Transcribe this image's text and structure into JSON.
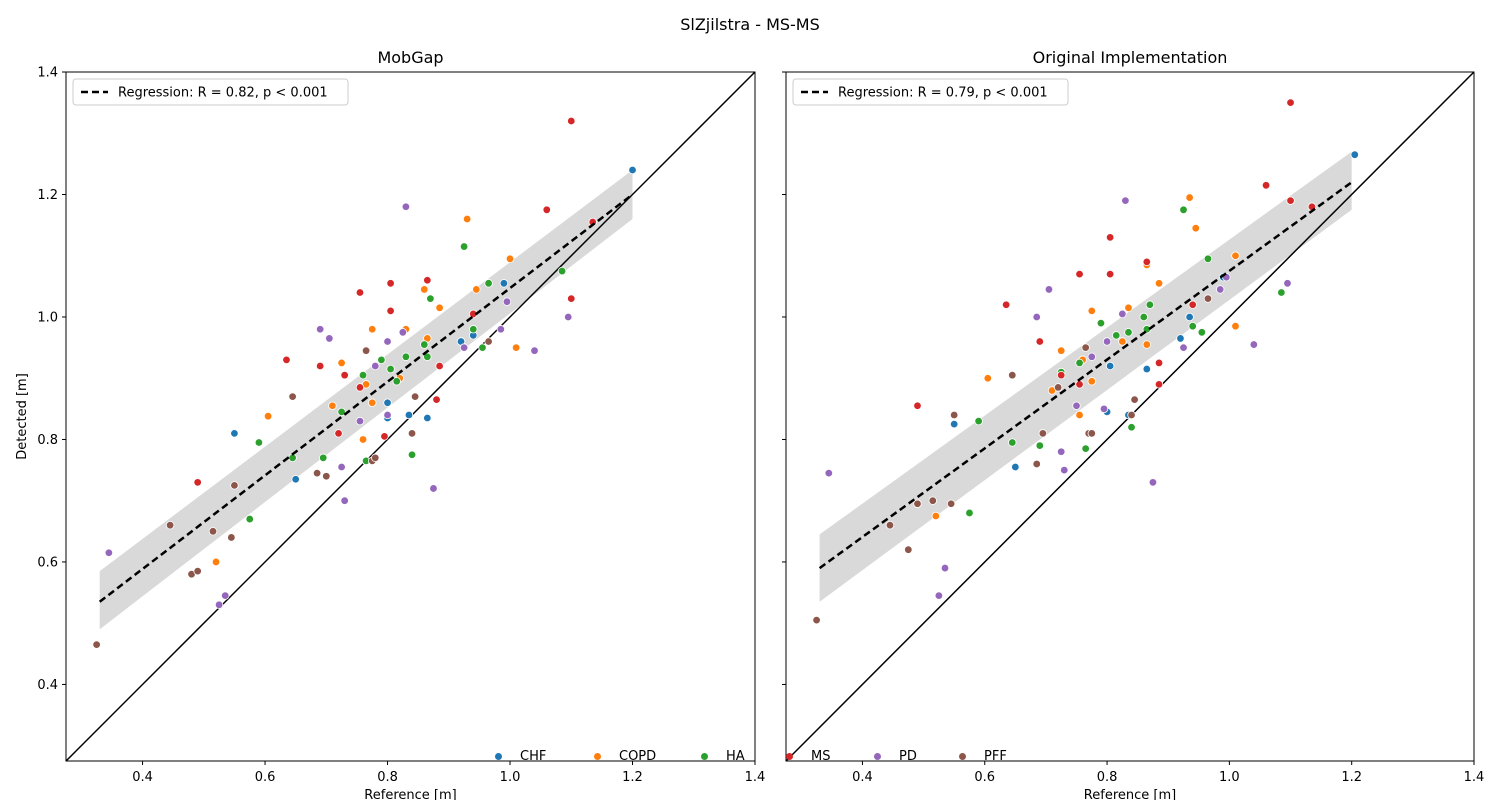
{
  "figure": {
    "suptitle": "SlZjilstra - MS-MS"
  },
  "chart_data": [
    {
      "type": "scatter",
      "title": "MobGap",
      "xlabel": "Reference [m]",
      "ylabel": "Detected [m]",
      "xlim": [
        0.275,
        1.4
      ],
      "ylim": [
        0.275,
        1.4
      ],
      "xticks": [
        "0.4",
        "0.6",
        "0.8",
        "1.0",
        "1.2",
        "1.4"
      ],
      "yticks": [
        "0.4",
        "0.6",
        "0.8",
        "1.0",
        "1.2",
        "1.4"
      ],
      "identity_line": true,
      "regression": {
        "label": "Regression: R = 0.82, p < 0.001",
        "x": [
          0.33,
          1.2
        ],
        "y": [
          0.535,
          1.2
        ],
        "ci_low": [
          0.49,
          1.16
        ],
        "ci_high": [
          0.585,
          1.24
        ]
      },
      "legend_position": "upper-left",
      "series": [
        {
          "name": "CHF",
          "color": "#1f77b4",
          "points": [
            [
              0.55,
              0.81
            ],
            [
              0.65,
              0.735
            ],
            [
              0.8,
              0.835
            ],
            [
              0.8,
              0.86
            ],
            [
              0.835,
              0.84
            ],
            [
              0.865,
              0.835
            ],
            [
              0.92,
              0.96
            ],
            [
              0.94,
              0.97
            ],
            [
              0.99,
              1.055
            ],
            [
              1.2,
              1.24
            ]
          ]
        },
        {
          "name": "COPD",
          "color": "#ff7f0e",
          "points": [
            [
              0.52,
              0.6
            ],
            [
              0.605,
              0.838
            ],
            [
              0.71,
              0.855
            ],
            [
              0.725,
              0.925
            ],
            [
              0.76,
              0.8
            ],
            [
              0.765,
              0.89
            ],
            [
              0.775,
              0.86
            ],
            [
              0.775,
              0.98
            ],
            [
              0.82,
              0.9
            ],
            [
              0.83,
              0.98
            ],
            [
              0.86,
              1.045
            ],
            [
              0.865,
              0.965
            ],
            [
              0.885,
              1.015
            ],
            [
              0.93,
              1.16
            ],
            [
              0.945,
              1.045
            ],
            [
              1.0,
              1.095
            ],
            [
              1.01,
              0.95
            ]
          ]
        },
        {
          "name": "HA",
          "color": "#2ca02c",
          "points": [
            [
              0.575,
              0.67
            ],
            [
              0.59,
              0.795
            ],
            [
              0.645,
              0.77
            ],
            [
              0.695,
              0.77
            ],
            [
              0.725,
              0.845
            ],
            [
              0.76,
              0.905
            ],
            [
              0.765,
              0.765
            ],
            [
              0.79,
              0.93
            ],
            [
              0.805,
              0.915
            ],
            [
              0.815,
              0.895
            ],
            [
              0.83,
              0.935
            ],
            [
              0.84,
              0.775
            ],
            [
              0.86,
              0.955
            ],
            [
              0.865,
              0.935
            ],
            [
              0.87,
              1.03
            ],
            [
              0.925,
              1.115
            ],
            [
              0.94,
              0.98
            ],
            [
              0.955,
              0.95
            ],
            [
              0.965,
              1.055
            ],
            [
              1.085,
              1.075
            ]
          ]
        },
        {
          "name": "MS",
          "color": "#d62728",
          "points": [
            [
              0.49,
              0.73
            ],
            [
              0.635,
              0.93
            ],
            [
              0.69,
              0.92
            ],
            [
              0.72,
              0.81
            ],
            [
              0.73,
              0.905
            ],
            [
              0.755,
              1.04
            ],
            [
              0.755,
              0.885
            ],
            [
              0.795,
              0.805
            ],
            [
              0.805,
              1.01
            ],
            [
              0.805,
              1.055
            ],
            [
              0.865,
              1.06
            ],
            [
              0.88,
              0.865
            ],
            [
              0.885,
              0.92
            ],
            [
              0.94,
              1.005
            ],
            [
              1.06,
              1.175
            ],
            [
              1.1,
              1.03
            ],
            [
              1.1,
              1.32
            ],
            [
              1.135,
              1.155
            ]
          ]
        },
        {
          "name": "PD",
          "color": "#9467bd",
          "points": [
            [
              0.345,
              0.615
            ],
            [
              0.525,
              0.53
            ],
            [
              0.535,
              0.545
            ],
            [
              0.69,
              0.98
            ],
            [
              0.705,
              0.965
            ],
            [
              0.725,
              0.755
            ],
            [
              0.73,
              0.7
            ],
            [
              0.755,
              0.83
            ],
            [
              0.78,
              0.92
            ],
            [
              0.8,
              0.84
            ],
            [
              0.8,
              0.96
            ],
            [
              0.825,
              0.975
            ],
            [
              0.83,
              1.18
            ],
            [
              0.875,
              0.72
            ],
            [
              0.925,
              0.95
            ],
            [
              0.985,
              0.98
            ],
            [
              0.995,
              1.025
            ],
            [
              1.04,
              0.945
            ],
            [
              1.095,
              1.0
            ]
          ]
        },
        {
          "name": "PFF",
          "color": "#8c564b",
          "points": [
            [
              0.325,
              0.465
            ],
            [
              0.445,
              0.66
            ],
            [
              0.48,
              0.58
            ],
            [
              0.49,
              0.585
            ],
            [
              0.515,
              0.65
            ],
            [
              0.545,
              0.64
            ],
            [
              0.55,
              0.725
            ],
            [
              0.645,
              0.87
            ],
            [
              0.685,
              0.745
            ],
            [
              0.7,
              0.74
            ],
            [
              0.765,
              0.945
            ],
            [
              0.775,
              0.765
            ],
            [
              0.78,
              0.77
            ],
            [
              0.84,
              0.81
            ],
            [
              0.845,
              0.87
            ],
            [
              0.965,
              0.96
            ]
          ]
        }
      ]
    },
    {
      "type": "scatter",
      "title": "Original Implementation",
      "xlabel": "Reference [m]",
      "ylabel": "",
      "xlim": [
        0.275,
        1.4
      ],
      "ylim": [
        0.275,
        1.4
      ],
      "xticks": [
        "0.4",
        "0.6",
        "0.8",
        "1.0",
        "1.2",
        "1.4"
      ],
      "yticks": [],
      "identity_line": true,
      "regression": {
        "label": "Regression: R = 0.79, p < 0.001",
        "x": [
          0.33,
          1.2
        ],
        "y": [
          0.59,
          1.22
        ],
        "ci_low": [
          0.535,
          1.175
        ],
        "ci_high": [
          0.645,
          1.27
        ]
      },
      "legend_position": "upper-left",
      "series": [
        {
          "name": "CHF",
          "color": "#1f77b4",
          "points": [
            [
              0.55,
              0.825
            ],
            [
              0.65,
              0.755
            ],
            [
              0.8,
              0.845
            ],
            [
              0.805,
              0.92
            ],
            [
              0.835,
              0.84
            ],
            [
              0.865,
              0.915
            ],
            [
              0.92,
              0.965
            ],
            [
              0.935,
              1.0
            ],
            [
              0.99,
              1.065
            ],
            [
              1.205,
              1.265
            ]
          ]
        },
        {
          "name": "COPD",
          "color": "#ff7f0e",
          "points": [
            [
              0.52,
              0.675
            ],
            [
              0.605,
              0.9
            ],
            [
              0.71,
              0.88
            ],
            [
              0.725,
              0.945
            ],
            [
              0.755,
              0.84
            ],
            [
              0.76,
              0.93
            ],
            [
              0.775,
              0.895
            ],
            [
              0.775,
              1.01
            ],
            [
              0.825,
              0.96
            ],
            [
              0.835,
              1.015
            ],
            [
              0.865,
              1.085
            ],
            [
              0.865,
              0.955
            ],
            [
              0.885,
              1.055
            ],
            [
              0.935,
              1.195
            ],
            [
              0.945,
              1.145
            ],
            [
              1.01,
              1.1
            ],
            [
              1.01,
              0.985
            ]
          ]
        },
        {
          "name": "HA",
          "color": "#2ca02c",
          "points": [
            [
              0.575,
              0.68
            ],
            [
              0.59,
              0.83
            ],
            [
              0.645,
              0.795
            ],
            [
              0.69,
              0.79
            ],
            [
              0.725,
              0.91
            ],
            [
              0.755,
              0.925
            ],
            [
              0.765,
              0.785
            ],
            [
              0.79,
              0.99
            ],
            [
              0.815,
              0.97
            ],
            [
              0.835,
              0.975
            ],
            [
              0.84,
              0.82
            ],
            [
              0.86,
              1.0
            ],
            [
              0.865,
              0.98
            ],
            [
              0.87,
              1.02
            ],
            [
              0.925,
              1.175
            ],
            [
              0.94,
              0.985
            ],
            [
              0.955,
              0.975
            ],
            [
              0.965,
              1.095
            ],
            [
              1.085,
              1.04
            ]
          ]
        },
        {
          "name": "MS",
          "color": "#d62728",
          "points": [
            [
              0.49,
              0.855
            ],
            [
              0.635,
              1.02
            ],
            [
              0.69,
              0.96
            ],
            [
              0.725,
              0.905
            ],
            [
              0.755,
              1.07
            ],
            [
              0.755,
              0.89
            ],
            [
              0.805,
              1.13
            ],
            [
              0.805,
              1.07
            ],
            [
              0.865,
              1.09
            ],
            [
              0.885,
              0.925
            ],
            [
              0.885,
              0.89
            ],
            [
              0.94,
              1.02
            ],
            [
              1.06,
              1.215
            ],
            [
              1.1,
              1.19
            ],
            [
              1.1,
              1.35
            ],
            [
              1.135,
              1.18
            ]
          ]
        },
        {
          "name": "PD",
          "color": "#9467bd",
          "points": [
            [
              0.345,
              0.745
            ],
            [
              0.525,
              0.545
            ],
            [
              0.535,
              0.59
            ],
            [
              0.685,
              1.0
            ],
            [
              0.705,
              1.045
            ],
            [
              0.725,
              0.78
            ],
            [
              0.73,
              0.75
            ],
            [
              0.75,
              0.855
            ],
            [
              0.775,
              0.935
            ],
            [
              0.795,
              0.85
            ],
            [
              0.8,
              0.96
            ],
            [
              0.825,
              1.005
            ],
            [
              0.83,
              1.19
            ],
            [
              0.875,
              0.73
            ],
            [
              0.925,
              0.95
            ],
            [
              0.985,
              1.045
            ],
            [
              0.995,
              1.065
            ],
            [
              1.04,
              0.955
            ],
            [
              1.095,
              1.055
            ]
          ]
        },
        {
          "name": "PFF",
          "color": "#8c564b",
          "points": [
            [
              0.325,
              0.505
            ],
            [
              0.445,
              0.66
            ],
            [
              0.475,
              0.62
            ],
            [
              0.49,
              0.695
            ],
            [
              0.515,
              0.7
            ],
            [
              0.545,
              0.695
            ],
            [
              0.55,
              0.84
            ],
            [
              0.645,
              0.905
            ],
            [
              0.685,
              0.76
            ],
            [
              0.695,
              0.81
            ],
            [
              0.72,
              0.885
            ],
            [
              0.765,
              0.95
            ],
            [
              0.77,
              0.81
            ],
            [
              0.775,
              0.81
            ],
            [
              0.84,
              0.84
            ],
            [
              0.845,
              0.865
            ],
            [
              0.965,
              1.03
            ]
          ]
        }
      ]
    }
  ]
}
